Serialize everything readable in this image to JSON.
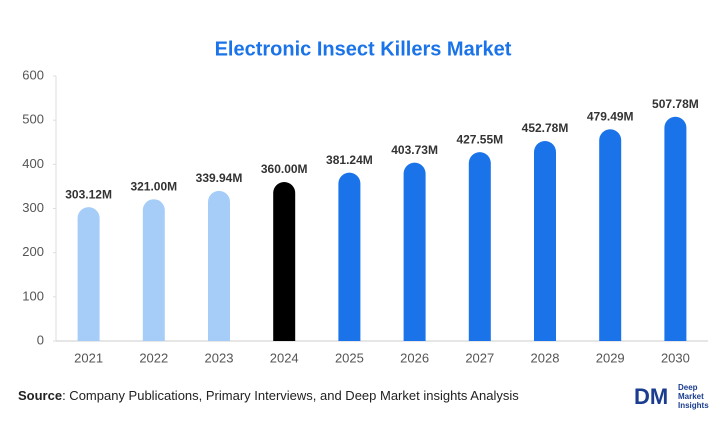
{
  "chart_data": {
    "type": "bar",
    "title": "Electronic Insect Killers Market",
    "categories": [
      "2021",
      "2022",
      "2023",
      "2024",
      "2025",
      "2026",
      "2027",
      "2028",
      "2029",
      "2030"
    ],
    "values": [
      303.12,
      321.0,
      339.94,
      360.0,
      381.24,
      403.73,
      427.55,
      452.78,
      479.49,
      507.78
    ],
    "value_labels": [
      "303.12M",
      "321.00M",
      "339.94M",
      "360.00M",
      "381.24M",
      "403.73M",
      "427.55M",
      "452.78M",
      "479.49M",
      "507.78M"
    ],
    "colors": [
      "#a6cdf8",
      "#a6cdf8",
      "#a6cdf8",
      "#000000",
      "#1a73e8",
      "#1a73e8",
      "#1a73e8",
      "#1a73e8",
      "#1a73e8",
      "#1a73e8"
    ],
    "ylim": [
      0,
      600
    ],
    "yticks": [
      0,
      100,
      200,
      300,
      400,
      500,
      600
    ],
    "grid": false
  },
  "source": {
    "label": "Source",
    "text": ": Company Publications, Primary Interviews, and Deep Market insights Analysis"
  },
  "logo": {
    "mark": "DM",
    "lines": [
      "Deep",
      "Market",
      "Insights"
    ]
  }
}
